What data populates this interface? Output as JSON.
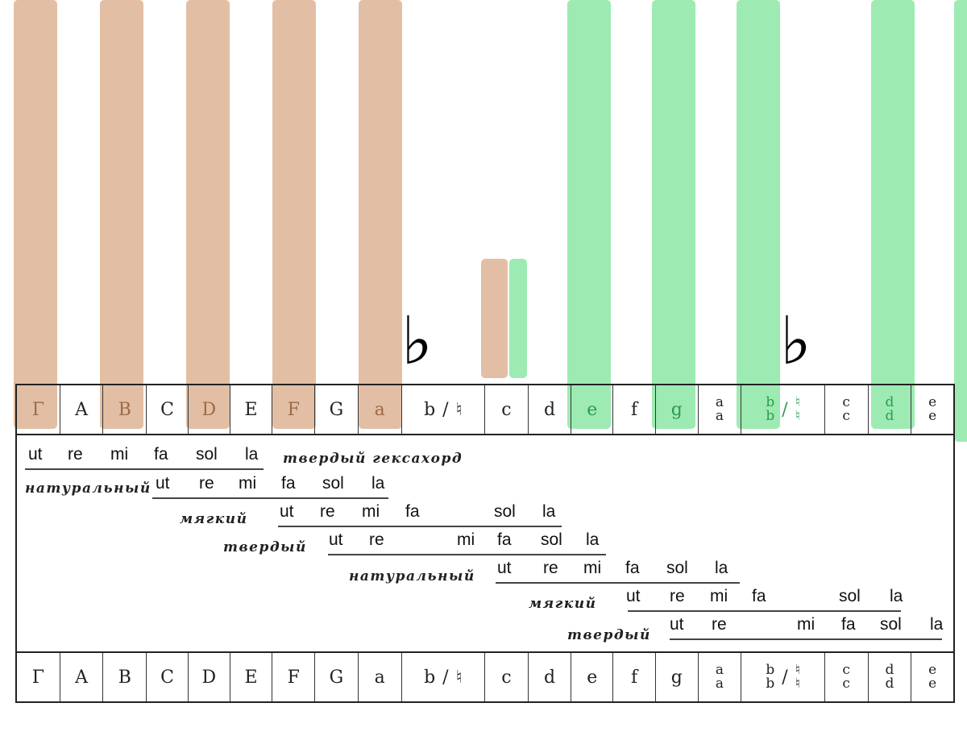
{
  "scale": {
    "notes": [
      {
        "type": "single",
        "text": "Γ",
        "hl": "tan"
      },
      {
        "type": "single",
        "text": "A"
      },
      {
        "type": "single",
        "text": "B",
        "hl": "tan"
      },
      {
        "type": "single",
        "text": "C"
      },
      {
        "type": "single",
        "text": "D",
        "hl": "tan"
      },
      {
        "type": "single",
        "text": "E"
      },
      {
        "type": "single",
        "text": "F",
        "hl": "tan"
      },
      {
        "type": "single",
        "text": "G"
      },
      {
        "type": "single",
        "text": "a",
        "hl": "tan"
      },
      {
        "type": "pair",
        "left": "b",
        "sep": "/",
        "right": "♮"
      },
      {
        "type": "single",
        "text": "c"
      },
      {
        "type": "single",
        "text": "d"
      },
      {
        "type": "single",
        "text": "e",
        "hl": "green"
      },
      {
        "type": "single",
        "text": "f"
      },
      {
        "type": "single",
        "text": "g",
        "hl": "green"
      },
      {
        "type": "stack",
        "top": "a",
        "bottom": "a"
      },
      {
        "type": "stackpair",
        "left_top": "b",
        "left_bottom": "b",
        "sep": "/",
        "right_top": "♮",
        "right_bottom": "♮",
        "hl": "green"
      },
      {
        "type": "stack",
        "top": "c",
        "bottom": "c"
      },
      {
        "type": "stack",
        "top": "d",
        "bottom": "d",
        "hl": "green"
      },
      {
        "type": "stack",
        "top": "e",
        "bottom": "e"
      }
    ]
  },
  "flat_symbols": [
    "♭",
    "♭"
  ],
  "hexachords": [
    {
      "label": "твердый гексахорд",
      "syllables": [
        "ut",
        "re",
        "mi",
        "fa",
        "sol",
        "la"
      ]
    },
    {
      "label": "натуральный",
      "syllables": [
        "ut",
        "re",
        "mi",
        "fa",
        "sol",
        "la"
      ]
    },
    {
      "label": "мягкий",
      "syllables": [
        "ut",
        "re",
        "mi",
        "fa",
        "sol",
        "la"
      ]
    },
    {
      "label": "твердый",
      "syllables": [
        "ut",
        "re",
        "mi",
        "fa",
        "sol",
        "la"
      ]
    },
    {
      "label": "натуральный",
      "syllables": [
        "ut",
        "re",
        "mi",
        "fa",
        "sol",
        "la"
      ]
    },
    {
      "label": "мягкий",
      "syllables": [
        "ut",
        "re",
        "mi",
        "fa",
        "sol",
        "la"
      ]
    },
    {
      "label": "твердый",
      "syllables": [
        "ut",
        "re",
        "mi",
        "fa",
        "sol",
        "la"
      ]
    }
  ],
  "colors": {
    "tan": "#e2bfa4",
    "green": "#9debb2"
  }
}
